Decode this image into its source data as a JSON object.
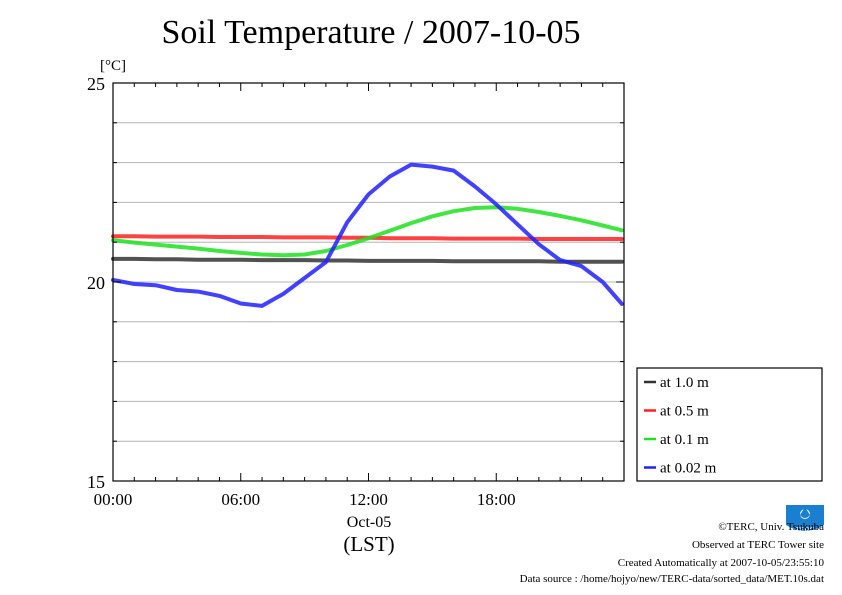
{
  "title": "Soil Temperature / 2007-10-05",
  "chart_data": {
    "type": "line",
    "title": "Soil Temperature / 2007-10-05",
    "ylabel": "[°C]",
    "ylim": [
      15,
      25
    ],
    "yticks": [
      "25",
      "20",
      "15"
    ],
    "ytick_values": [
      25,
      20,
      15
    ],
    "xlim": [
      0,
      24
    ],
    "xticks": [
      "00:00",
      "06:00",
      "12:00",
      "18:00"
    ],
    "xtick_values": [
      0,
      6,
      12,
      18
    ],
    "xlabel_date": "Oct-05",
    "xlabel": "(LST)",
    "grid": true,
    "legend_position": "bottom-right, outside",
    "x": [
      0,
      1,
      2,
      3,
      4,
      5,
      6,
      7,
      8,
      9,
      10,
      11,
      12,
      13,
      14,
      15,
      16,
      17,
      18,
      19,
      20,
      21,
      22,
      23,
      23.9
    ],
    "series": [
      {
        "name": "at 1.0 m",
        "color": "#333333",
        "values": [
          20.58,
          20.58,
          20.57,
          20.57,
          20.56,
          20.56,
          20.56,
          20.55,
          20.55,
          20.55,
          20.54,
          20.54,
          20.53,
          20.53,
          20.53,
          20.53,
          20.52,
          20.52,
          20.52,
          20.52,
          20.52,
          20.51,
          20.51,
          20.51,
          20.51
        ]
      },
      {
        "name": "at 0.5 m",
        "color": "#ff2020",
        "values": [
          21.15,
          21.15,
          21.14,
          21.14,
          21.14,
          21.13,
          21.13,
          21.13,
          21.12,
          21.12,
          21.12,
          21.11,
          21.11,
          21.1,
          21.1,
          21.1,
          21.09,
          21.09,
          21.09,
          21.09,
          21.08,
          21.08,
          21.08,
          21.08,
          21.08
        ]
      },
      {
        "name": "at 0.1 m",
        "color": "#20e020",
        "values": [
          21.05,
          20.99,
          20.94,
          20.89,
          20.84,
          20.78,
          20.73,
          20.69,
          20.67,
          20.69,
          20.78,
          20.93,
          21.1,
          21.29,
          21.48,
          21.65,
          21.78,
          21.86,
          21.88,
          21.84,
          21.76,
          21.66,
          21.55,
          21.42,
          21.3
        ]
      },
      {
        "name": "at 0.02 m",
        "color": "#2020ff",
        "values": [
          20.05,
          19.95,
          19.92,
          19.8,
          19.76,
          19.65,
          19.46,
          19.4,
          19.7,
          20.1,
          20.5,
          21.5,
          22.2,
          22.65,
          22.95,
          22.9,
          22.8,
          22.4,
          21.95,
          21.45,
          20.95,
          20.55,
          20.4,
          20.0,
          19.45
        ]
      }
    ]
  },
  "credits": {
    "copyright": "©TERC, Univ. Tsukuba",
    "observed": "Observed at TERC Tower site",
    "created": "Created Automatically at 2007-10-05/23:55:10",
    "source": "Data source : /home/hojyo/new/TERC-data/sorted_data/MET.10s.dat",
    "logo_text": "TERC"
  }
}
